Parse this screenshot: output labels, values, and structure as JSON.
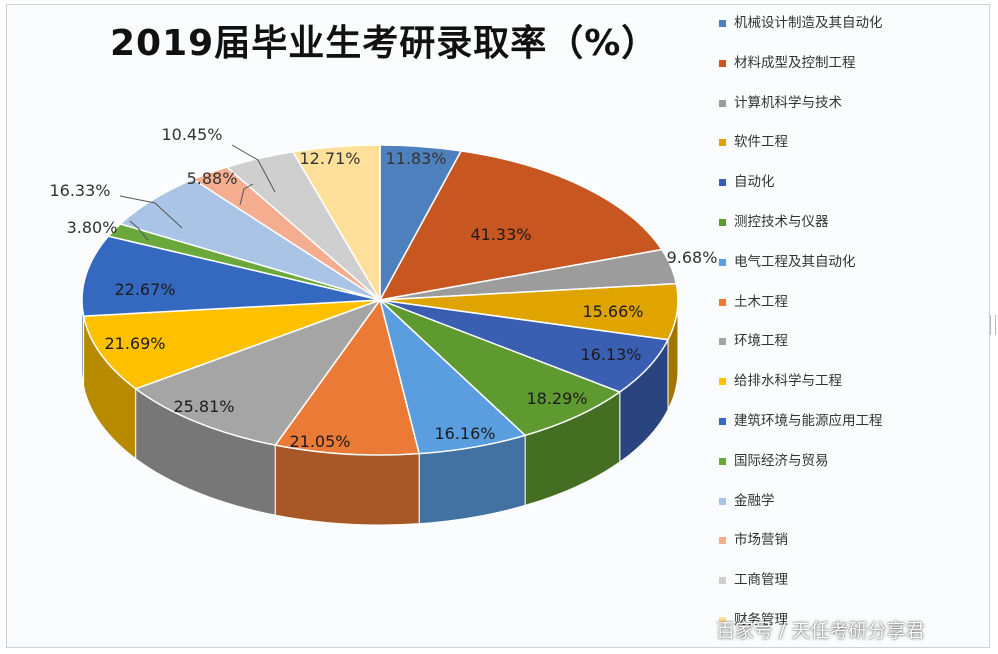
{
  "chart_data": {
    "type": "pie",
    "title": "2019届毕业生考研录取率（%）",
    "slices": [
      {
        "label": "机械设计制造及其自动化",
        "value": 11.83,
        "color": "#4e80bd"
      },
      {
        "label": "材料成型及控制工程",
        "value": 41.33,
        "color": "#c75621"
      },
      {
        "label": "计算机科学与技术",
        "value": 9.68,
        "color": "#9c9c9c"
      },
      {
        "label": "软件工程",
        "value": 15.66,
        "color": "#e0a400"
      },
      {
        "label": "自动化",
        "value": 16.13,
        "color": "#3a5fb2"
      },
      {
        "label": "测控技术与仪器",
        "value": 18.29,
        "color": "#5f9a30"
      },
      {
        "label": "电气工程及其自动化",
        "value": 16.16,
        "color": "#5b9ee0"
      },
      {
        "label": "土木工程",
        "value": 21.05,
        "color": "#ea7a36"
      },
      {
        "label": "环境工程",
        "value": 25.81,
        "color": "#a5a5a5"
      },
      {
        "label": "给排水科学与工程",
        "value": 21.69,
        "color": "#ffc000"
      },
      {
        "label": "建筑环境与能源应用工程",
        "value": 22.67,
        "color": "#3569bf"
      },
      {
        "label": "国际经济与贸易",
        "value": 3.8,
        "color": "#6aa83c"
      },
      {
        "label": "金融学",
        "value": 16.33,
        "color": "#a9c4e4"
      },
      {
        "label": "市场营销",
        "value": 5.88,
        "color": "#f4ad8e"
      },
      {
        "label": "工商管理",
        "value": 10.45,
        "color": "#cfcfcf"
      },
      {
        "label": "财务管理",
        "value": 12.71,
        "color": "#ffe09a"
      }
    ],
    "data_labels": [
      "11.83%",
      "41.33%",
      "9.68%",
      "15.66%",
      "16.13%",
      "18.29%",
      "16.16%",
      "21.05%",
      "25.81%",
      "21.69%",
      "22.67%",
      "3.80%",
      "16.33%",
      "5.88%",
      "10.45%",
      "12.71%"
    ],
    "legend_position": "right"
  },
  "legend_items": [
    "机械设计制造及其自动化",
    "材料成型及控制工程",
    "计算机科学与技术",
    "软件工程",
    "自动化",
    "测控技术与仪器",
    "电气工程及其自动化",
    "土木工程",
    "环境工程",
    "给排水科学与工程",
    "建筑环境与能源应用工程",
    "国际经济与贸易",
    "金融学",
    "市场营销",
    "工商管理",
    "财务管理"
  ],
  "watermark": "百家号 / 天任考研分享君"
}
